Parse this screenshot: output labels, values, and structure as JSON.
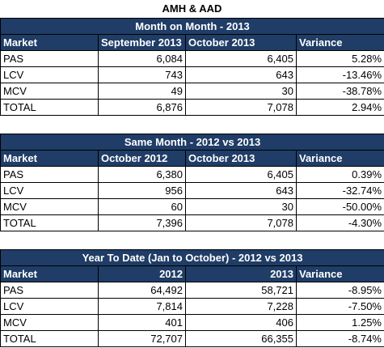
{
  "title": "AMH & AAD",
  "sections": [
    {
      "title": "Month on Month - 2013",
      "headers": [
        "Market",
        "September 2013",
        "October 2013",
        "Variance"
      ],
      "rows": [
        [
          "PAS",
          "6,084",
          "6,405",
          "5.28%"
        ],
        [
          "LCV",
          "743",
          "643",
          "-13.46%"
        ],
        [
          "MCV",
          "49",
          "30",
          "-38.78%"
        ],
        [
          "TOTAL",
          "6,876",
          "7,078",
          "2.94%"
        ]
      ]
    },
    {
      "title": "Same Month - 2012 vs 2013",
      "headers": [
        "Market",
        "October 2012",
        "October 2013",
        "Variance"
      ],
      "rows": [
        [
          "PAS",
          "6,380",
          "6,405",
          "0.39%"
        ],
        [
          "LCV",
          "956",
          "643",
          "-32.74%"
        ],
        [
          "MCV",
          "60",
          "30",
          "-50.00%"
        ],
        [
          "TOTAL",
          "7,396",
          "7,078",
          "-4.30%"
        ]
      ]
    },
    {
      "title": "Year To Date (Jan to October) - 2012 vs 2013",
      "headers": [
        "Market",
        "2012",
        "2013",
        "Variance"
      ],
      "rows": [
        [
          "PAS",
          "64,492",
          "58,721",
          "-8.95%"
        ],
        [
          "LCV",
          "7,814",
          "7,228",
          "-7.50%"
        ],
        [
          "MCV",
          "401",
          "406",
          "1.25%"
        ],
        [
          "TOTAL",
          "72,707",
          "66,355",
          "-8.74%"
        ]
      ]
    }
  ]
}
